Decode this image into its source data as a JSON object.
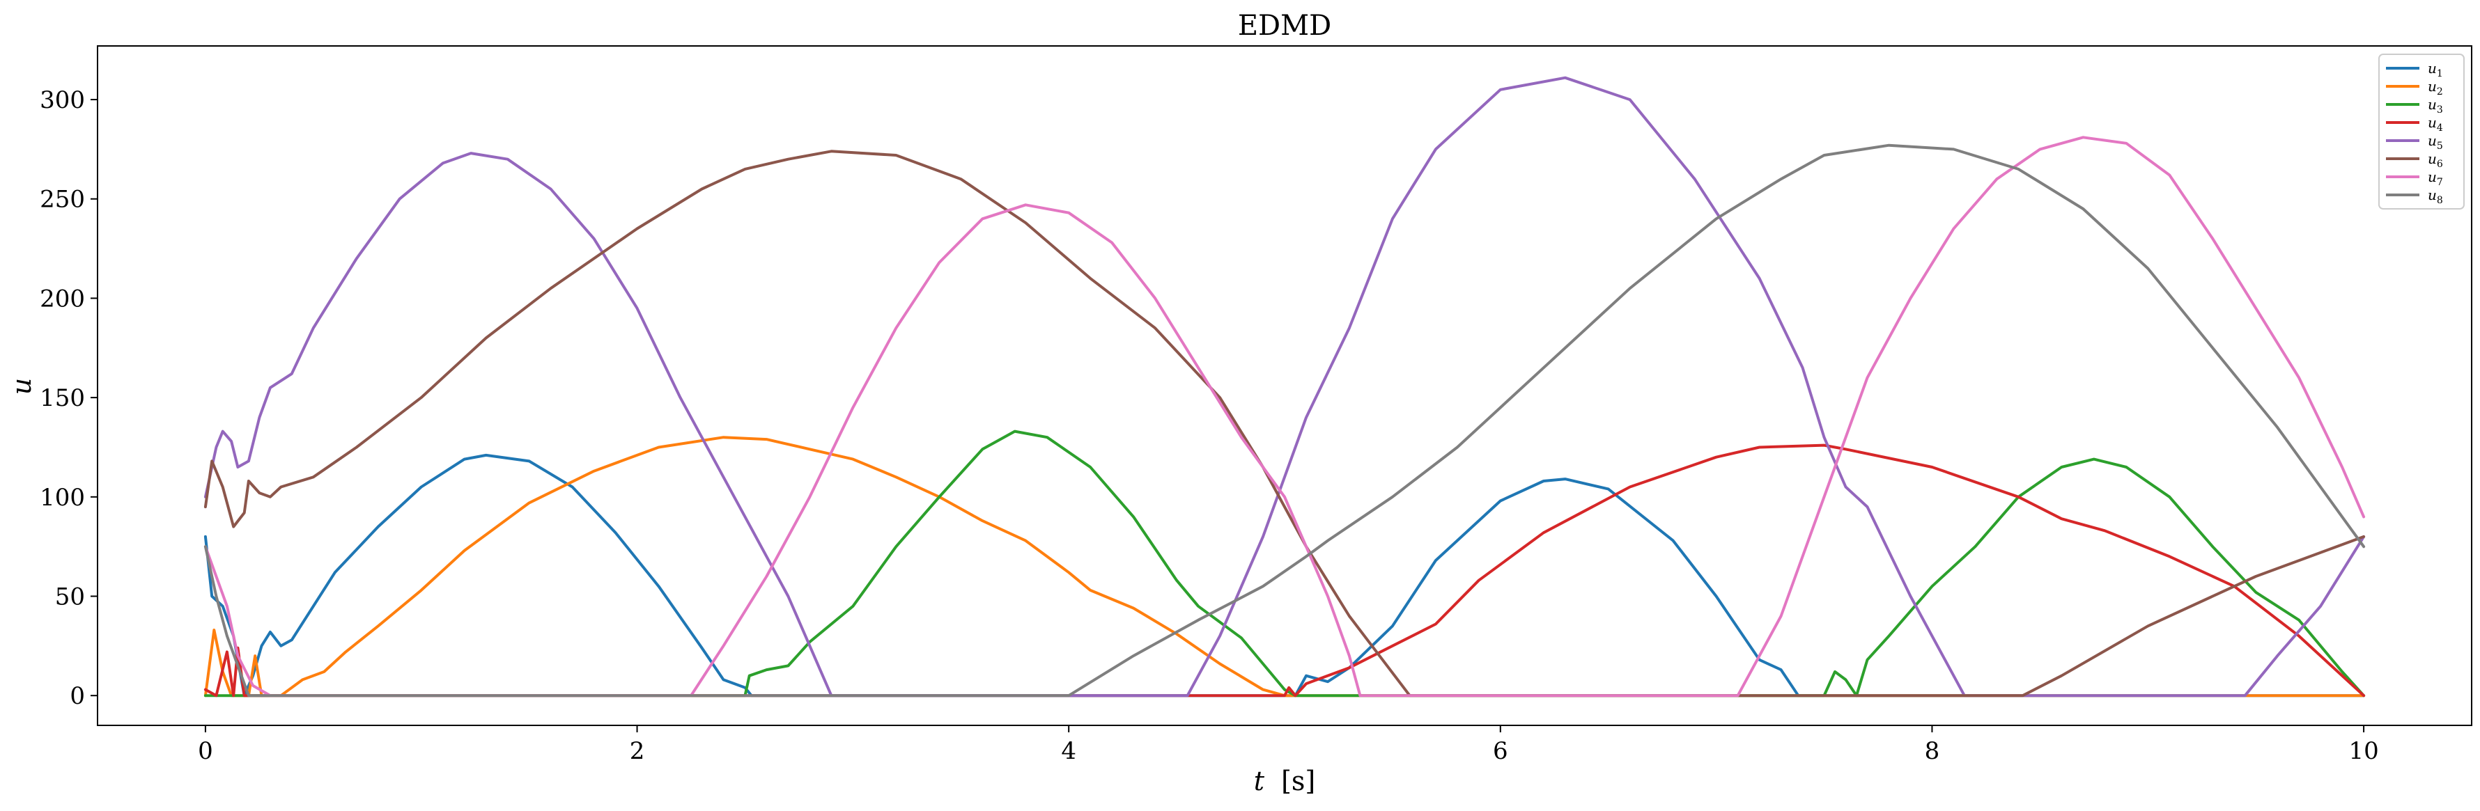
{
  "chart_data": {
    "type": "line",
    "title": "EDMD",
    "xlabel_var": "t",
    "xlabel_unit": "[s]",
    "ylabel": "u",
    "xlim": [
      -0.5,
      10.5
    ],
    "ylim": [
      -15,
      327
    ],
    "xticks": [
      0,
      2,
      4,
      6,
      8,
      10
    ],
    "yticks": [
      0,
      50,
      100,
      150,
      200,
      250,
      300
    ],
    "grid": false,
    "legend_position": "top-right",
    "series": [
      {
        "name": "u1",
        "base": "u",
        "sub": "1",
        "color": "#1f77b4",
        "points": [
          [
            0,
            80
          ],
          [
            0.03,
            50
          ],
          [
            0.08,
            45
          ],
          [
            0.13,
            30
          ],
          [
            0.18,
            0
          ],
          [
            0.22,
            10
          ],
          [
            0.26,
            25
          ],
          [
            0.3,
            32
          ],
          [
            0.35,
            25
          ],
          [
            0.4,
            28
          ],
          [
            0.6,
            62
          ],
          [
            0.8,
            85
          ],
          [
            1.0,
            105
          ],
          [
            1.2,
            119
          ],
          [
            1.3,
            121
          ],
          [
            1.5,
            118
          ],
          [
            1.7,
            105
          ],
          [
            1.9,
            82
          ],
          [
            2.1,
            55
          ],
          [
            2.3,
            24
          ],
          [
            2.4,
            8
          ],
          [
            2.5,
            4
          ],
          [
            2.53,
            0
          ],
          [
            5.05,
            0
          ],
          [
            5.1,
            10
          ],
          [
            5.2,
            7
          ],
          [
            5.3,
            14
          ],
          [
            5.5,
            35
          ],
          [
            5.7,
            68
          ],
          [
            6.0,
            98
          ],
          [
            6.2,
            108
          ],
          [
            6.3,
            109
          ],
          [
            6.5,
            104
          ],
          [
            6.8,
            78
          ],
          [
            7.0,
            50
          ],
          [
            7.2,
            18
          ],
          [
            7.3,
            13
          ],
          [
            7.38,
            0
          ],
          [
            10,
            0
          ]
        ]
      },
      {
        "name": "u2",
        "base": "u",
        "sub": "2",
        "color": "#ff7f0e",
        "points": [
          [
            0,
            0
          ],
          [
            0.04,
            33
          ],
          [
            0.08,
            12
          ],
          [
            0.12,
            0
          ],
          [
            0.2,
            0
          ],
          [
            0.23,
            20
          ],
          [
            0.26,
            0
          ],
          [
            0.35,
            0
          ],
          [
            0.45,
            8
          ],
          [
            0.55,
            12
          ],
          [
            0.65,
            22
          ],
          [
            0.8,
            35
          ],
          [
            1.0,
            53
          ],
          [
            1.2,
            73
          ],
          [
            1.5,
            97
          ],
          [
            1.8,
            113
          ],
          [
            2.1,
            125
          ],
          [
            2.4,
            130
          ],
          [
            2.6,
            129
          ],
          [
            2.8,
            124
          ],
          [
            3.0,
            119
          ],
          [
            3.2,
            110
          ],
          [
            3.4,
            100
          ],
          [
            3.6,
            88
          ],
          [
            3.8,
            78
          ],
          [
            4.0,
            62
          ],
          [
            4.1,
            53
          ],
          [
            4.3,
            44
          ],
          [
            4.5,
            31
          ],
          [
            4.7,
            16
          ],
          [
            4.9,
            3
          ],
          [
            5.0,
            0
          ],
          [
            10,
            0
          ]
        ]
      },
      {
        "name": "u3",
        "base": "u",
        "sub": "3",
        "color": "#2ca02c",
        "points": [
          [
            0,
            0
          ],
          [
            2.5,
            0
          ],
          [
            2.52,
            10
          ],
          [
            2.6,
            13
          ],
          [
            2.7,
            15
          ],
          [
            2.8,
            27
          ],
          [
            3.0,
            45
          ],
          [
            3.2,
            75
          ],
          [
            3.4,
            100
          ],
          [
            3.6,
            124
          ],
          [
            3.75,
            133
          ],
          [
            3.9,
            130
          ],
          [
            4.1,
            115
          ],
          [
            4.3,
            90
          ],
          [
            4.5,
            58
          ],
          [
            4.6,
            45
          ],
          [
            4.8,
            29
          ],
          [
            5.0,
            3
          ],
          [
            5.05,
            0
          ],
          [
            7.5,
            0
          ],
          [
            7.55,
            12
          ],
          [
            7.6,
            8
          ],
          [
            7.65,
            0
          ],
          [
            7.7,
            18
          ],
          [
            7.8,
            30
          ],
          [
            8.0,
            55
          ],
          [
            8.2,
            75
          ],
          [
            8.4,
            100
          ],
          [
            8.6,
            115
          ],
          [
            8.75,
            119
          ],
          [
            8.9,
            115
          ],
          [
            9.1,
            100
          ],
          [
            9.3,
            75
          ],
          [
            9.5,
            52
          ],
          [
            9.7,
            38
          ],
          [
            9.9,
            12
          ],
          [
            10,
            0
          ]
        ]
      },
      {
        "name": "u4",
        "base": "u",
        "sub": "4",
        "color": "#d62728",
        "points": [
          [
            0,
            3
          ],
          [
            0.05,
            0
          ],
          [
            0.1,
            22
          ],
          [
            0.13,
            0
          ],
          [
            0.15,
            24
          ],
          [
            0.18,
            0
          ],
          [
            5.0,
            0
          ],
          [
            5.02,
            4
          ],
          [
            5.05,
            0
          ],
          [
            5.1,
            6
          ],
          [
            5.3,
            14
          ],
          [
            5.5,
            25
          ],
          [
            5.7,
            36
          ],
          [
            5.9,
            58
          ],
          [
            6.2,
            82
          ],
          [
            6.6,
            105
          ],
          [
            7.0,
            120
          ],
          [
            7.2,
            125
          ],
          [
            7.5,
            126
          ],
          [
            7.6,
            124
          ],
          [
            8.0,
            115
          ],
          [
            8.4,
            100
          ],
          [
            8.6,
            89
          ],
          [
            8.8,
            83
          ],
          [
            9.1,
            70
          ],
          [
            9.4,
            55
          ],
          [
            9.7,
            30
          ],
          [
            10,
            0
          ]
        ]
      },
      {
        "name": "u5",
        "base": "u",
        "sub": "5",
        "color": "#9467bd",
        "points": [
          [
            0,
            100
          ],
          [
            0.05,
            125
          ],
          [
            0.08,
            133
          ],
          [
            0.12,
            128
          ],
          [
            0.15,
            115
          ],
          [
            0.2,
            118
          ],
          [
            0.25,
            140
          ],
          [
            0.3,
            155
          ],
          [
            0.4,
            162
          ],
          [
            0.5,
            185
          ],
          [
            0.7,
            220
          ],
          [
            0.9,
            250
          ],
          [
            1.1,
            268
          ],
          [
            1.23,
            273
          ],
          [
            1.4,
            270
          ],
          [
            1.6,
            255
          ],
          [
            1.8,
            230
          ],
          [
            2.0,
            195
          ],
          [
            2.2,
            150
          ],
          [
            2.4,
            110
          ],
          [
            2.6,
            70
          ],
          [
            2.7,
            50
          ],
          [
            2.8,
            25
          ],
          [
            2.9,
            0
          ],
          [
            4.55,
            0
          ],
          [
            4.7,
            30
          ],
          [
            4.9,
            80
          ],
          [
            5.1,
            140
          ],
          [
            5.3,
            185
          ],
          [
            5.5,
            240
          ],
          [
            5.7,
            275
          ],
          [
            6.0,
            305
          ],
          [
            6.3,
            311
          ],
          [
            6.6,
            300
          ],
          [
            6.9,
            260
          ],
          [
            7.2,
            210
          ],
          [
            7.4,
            165
          ],
          [
            7.5,
            130
          ],
          [
            7.6,
            105
          ],
          [
            7.7,
            95
          ],
          [
            7.9,
            50
          ],
          [
            8.15,
            0
          ],
          [
            9.45,
            0
          ],
          [
            9.6,
            20
          ],
          [
            9.8,
            45
          ],
          [
            10,
            80
          ]
        ]
      },
      {
        "name": "u6",
        "base": "u",
        "sub": "6",
        "color": "#8c564b",
        "points": [
          [
            0,
            95
          ],
          [
            0.03,
            118
          ],
          [
            0.08,
            105
          ],
          [
            0.13,
            85
          ],
          [
            0.18,
            92
          ],
          [
            0.2,
            108
          ],
          [
            0.25,
            102
          ],
          [
            0.3,
            100
          ],
          [
            0.35,
            105
          ],
          [
            0.5,
            110
          ],
          [
            0.7,
            125
          ],
          [
            1.0,
            150
          ],
          [
            1.3,
            180
          ],
          [
            1.6,
            205
          ],
          [
            2.0,
            235
          ],
          [
            2.3,
            255
          ],
          [
            2.5,
            265
          ],
          [
            2.7,
            270
          ],
          [
            2.9,
            274
          ],
          [
            3.2,
            272
          ],
          [
            3.5,
            260
          ],
          [
            3.8,
            238
          ],
          [
            4.1,
            210
          ],
          [
            4.4,
            185
          ],
          [
            4.7,
            150
          ],
          [
            4.9,
            115
          ],
          [
            5.1,
            75
          ],
          [
            5.3,
            40
          ],
          [
            5.58,
            0
          ],
          [
            8.42,
            0
          ],
          [
            8.6,
            10
          ],
          [
            9.0,
            35
          ],
          [
            9.5,
            60
          ],
          [
            10,
            80
          ]
        ]
      },
      {
        "name": "u7",
        "base": "u",
        "sub": "7",
        "color": "#e377c2",
        "points": [
          [
            0,
            75
          ],
          [
            0.05,
            60
          ],
          [
            0.1,
            45
          ],
          [
            0.15,
            20
          ],
          [
            0.22,
            5
          ],
          [
            0.3,
            0
          ],
          [
            2.25,
            0
          ],
          [
            2.4,
            25
          ],
          [
            2.6,
            60
          ],
          [
            2.8,
            100
          ],
          [
            3.0,
            145
          ],
          [
            3.2,
            185
          ],
          [
            3.4,
            218
          ],
          [
            3.6,
            240
          ],
          [
            3.8,
            247
          ],
          [
            4.0,
            243
          ],
          [
            4.2,
            228
          ],
          [
            4.4,
            200
          ],
          [
            4.6,
            165
          ],
          [
            4.8,
            130
          ],
          [
            5.0,
            100
          ],
          [
            5.1,
            75
          ],
          [
            5.2,
            50
          ],
          [
            5.3,
            20
          ],
          [
            5.35,
            0
          ],
          [
            7.1,
            0
          ],
          [
            7.3,
            40
          ],
          [
            7.5,
            100
          ],
          [
            7.7,
            160
          ],
          [
            7.9,
            200
          ],
          [
            8.1,
            235
          ],
          [
            8.3,
            260
          ],
          [
            8.5,
            275
          ],
          [
            8.7,
            281
          ],
          [
            8.9,
            278
          ],
          [
            9.1,
            262
          ],
          [
            9.3,
            230
          ],
          [
            9.5,
            195
          ],
          [
            9.7,
            160
          ],
          [
            9.9,
            115
          ],
          [
            10,
            90
          ]
        ]
      },
      {
        "name": "u8",
        "base": "u",
        "sub": "8",
        "color": "#7f7f7f",
        "points": [
          [
            0,
            75
          ],
          [
            0.05,
            50
          ],
          [
            0.1,
            30
          ],
          [
            0.15,
            15
          ],
          [
            0.2,
            0
          ],
          [
            4.0,
            0
          ],
          [
            4.3,
            20
          ],
          [
            4.6,
            38
          ],
          [
            4.9,
            55
          ],
          [
            5.1,
            70
          ],
          [
            5.2,
            78
          ],
          [
            5.5,
            100
          ],
          [
            5.8,
            125
          ],
          [
            6.2,
            165
          ],
          [
            6.6,
            205
          ],
          [
            7.0,
            240
          ],
          [
            7.3,
            260
          ],
          [
            7.5,
            272
          ],
          [
            7.8,
            277
          ],
          [
            8.1,
            275
          ],
          [
            8.4,
            265
          ],
          [
            8.7,
            245
          ],
          [
            9.0,
            215
          ],
          [
            9.3,
            175
          ],
          [
            9.6,
            135
          ],
          [
            9.9,
            90
          ],
          [
            10,
            75
          ]
        ]
      }
    ]
  }
}
